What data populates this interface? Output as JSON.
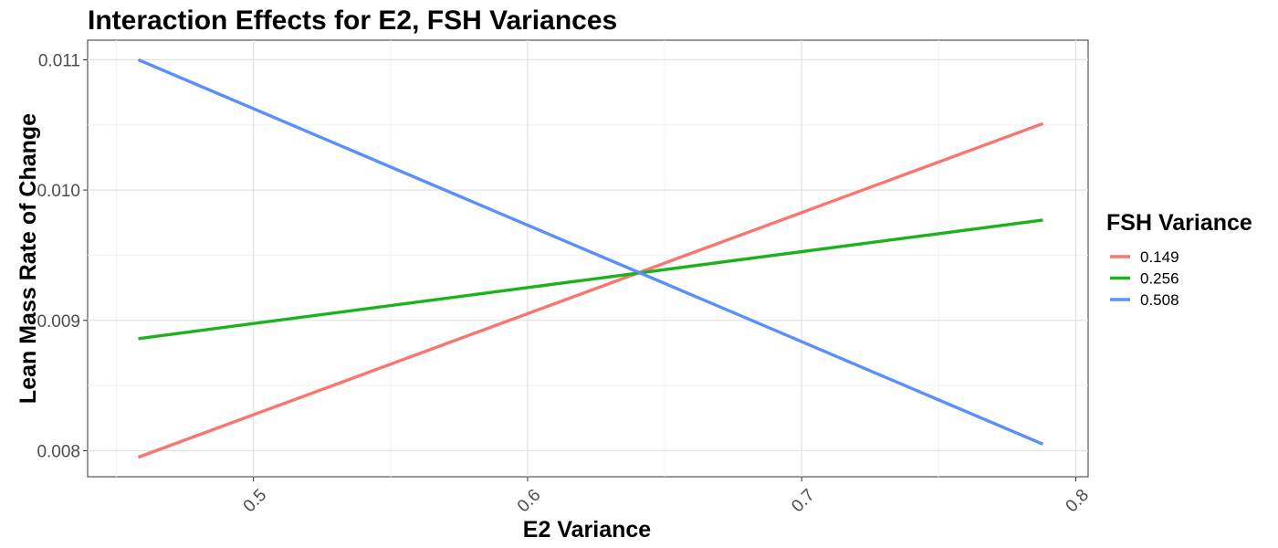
{
  "chart_data": {
    "type": "line",
    "title": "Interaction Effects for E2, FSH Variances",
    "xlabel": "E2 Variance",
    "ylabel": "Lean Mass Rate of Change",
    "xlim": [
      0.4395,
      0.8045
    ],
    "ylim": [
      0.0078,
      0.01115
    ],
    "x_ticks": [
      0.5,
      0.6,
      0.7,
      0.8
    ],
    "x_tick_labels": [
      "0.5",
      "0.6",
      "0.7",
      "0.8"
    ],
    "y_ticks": [
      0.008,
      0.009,
      0.01,
      0.011
    ],
    "y_tick_labels": [
      "0.008",
      "0.009",
      "0.010",
      "0.011"
    ],
    "grid": true,
    "legend": {
      "title": "FSH Variance",
      "position": "right"
    },
    "series": [
      {
        "name": "0.149",
        "color": "#F8766D",
        "x": [
          0.458,
          0.788
        ],
        "y": [
          0.00795,
          0.01051
        ]
      },
      {
        "name": "0.256",
        "color": "#1DB21D",
        "x": [
          0.458,
          0.788
        ],
        "y": [
          0.00886,
          0.00977
        ]
      },
      {
        "name": "0.508",
        "color": "#5B8FF9",
        "x": [
          0.458,
          0.788
        ],
        "y": [
          0.011,
          0.00805
        ]
      }
    ]
  }
}
